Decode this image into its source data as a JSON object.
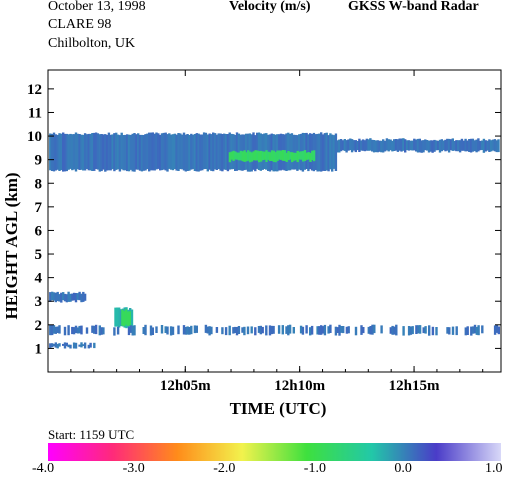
{
  "header": {
    "date": "October  13, 1998",
    "campaign": "CLARE 98",
    "site": "Chilbolton, UK",
    "quantity": "Velocity (m/s)",
    "instrument": "GKSS  W-band Radar"
  },
  "start_label": "Start: 1159 UTC",
  "chart_data": {
    "type": "heatmap",
    "xlabel": "TIME (UTC)",
    "ylabel": "HEIGHT AGL (km)",
    "xlim_min_after_1159": [
      0,
      19.8
    ],
    "ylim": [
      0,
      12.8
    ],
    "x_ticks": [
      {
        "t": 6,
        "label": "12h05m"
      },
      {
        "t": 11,
        "label": "12h10m"
      },
      {
        "t": 16,
        "label": "12h15m"
      }
    ],
    "y_ticks": [
      1,
      2,
      3,
      4,
      5,
      6,
      7,
      8,
      9,
      10,
      11,
      12
    ],
    "colorbar": {
      "min": -4.0,
      "max": 1.0,
      "tick_labels": [
        "-4.0",
        "-3.0",
        "-2.0",
        "-1.0",
        "0.0",
        "1.0"
      ],
      "colors": [
        "#ff00ff",
        "#ff2a7a",
        "#ff8c1a",
        "#f2f24d",
        "#3ee03e",
        "#22c8a8",
        "#4a3cc8",
        "#d8d8f8"
      ]
    },
    "regions": [
      {
        "name": "upper cloud layer",
        "t": [
          0.05,
          12.6
        ],
        "base_km": 8.55,
        "top_km": 10.1,
        "velocity": 0.0
      },
      {
        "name": "upper cloud layer (thin tail)",
        "t": [
          12.6,
          19.7
        ],
        "base_km": 9.35,
        "top_km": 9.85,
        "velocity": 0.0
      },
      {
        "name": "green pocket",
        "t": [
          7.9,
          11.6
        ],
        "base_km": 8.95,
        "top_km": 9.35,
        "velocity": -0.9
      },
      {
        "name": "low layer left",
        "t": [
          0.05,
          1.6
        ],
        "base_km": 3.0,
        "top_km": 3.35,
        "velocity": 0.0
      },
      {
        "name": "low cell",
        "t": [
          2.9,
          3.7
        ],
        "base_km": 1.9,
        "top_km": 2.7,
        "velocity": -0.3
      },
      {
        "name": "low cell core",
        "t": [
          3.2,
          3.6
        ],
        "base_km": 2.0,
        "top_km": 2.6,
        "velocity": -0.9
      },
      {
        "name": "lower band",
        "t": [
          0.05,
          19.7
        ],
        "base_km": 1.6,
        "top_km": 1.95,
        "velocity": 0.0
      },
      {
        "name": "surface band",
        "t": [
          0.05,
          2.0
        ],
        "base_km": 1.05,
        "top_km": 1.2,
        "velocity": 0.0
      }
    ]
  }
}
